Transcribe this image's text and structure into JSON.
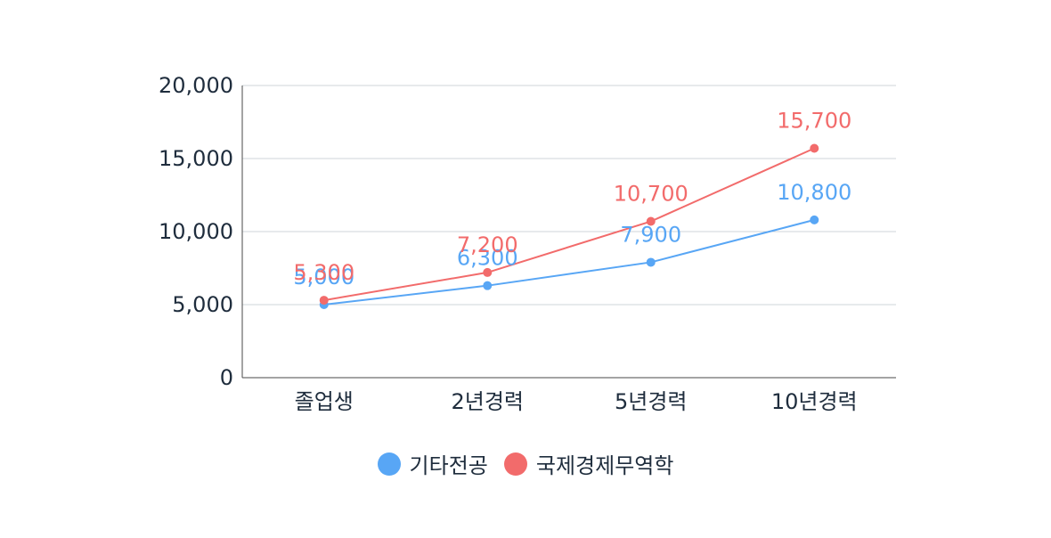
{
  "chart_data": {
    "type": "line",
    "categories": [
      "졸업생",
      "2년경력",
      "5년경력",
      "10년경력"
    ],
    "series": [
      {
        "name": "기타전공",
        "values": [
          5000,
          6300,
          7900,
          10800
        ],
        "data_labels": [
          "5,000",
          "6,300",
          "7,900",
          "10,800"
        ],
        "color": "#58a6f5"
      },
      {
        "name": "국제경제무역학",
        "values": [
          5300,
          7200,
          10700,
          15700
        ],
        "data_labels": [
          "5,300",
          "7,200",
          "10,700",
          "15,700"
        ],
        "color": "#f26b6b"
      }
    ],
    "ylim": [
      0,
      20000
    ],
    "y_ticks": [
      0,
      5000,
      10000,
      15000,
      20000
    ],
    "y_tick_labels": [
      "0",
      "5,000",
      "10,000",
      "15,000",
      "20,000"
    ],
    "grid": true,
    "legend_position": "bottom"
  },
  "colors": {
    "axis": "#4a4a4a",
    "grid": "#cfd4da",
    "text": "#1f2d3d"
  }
}
